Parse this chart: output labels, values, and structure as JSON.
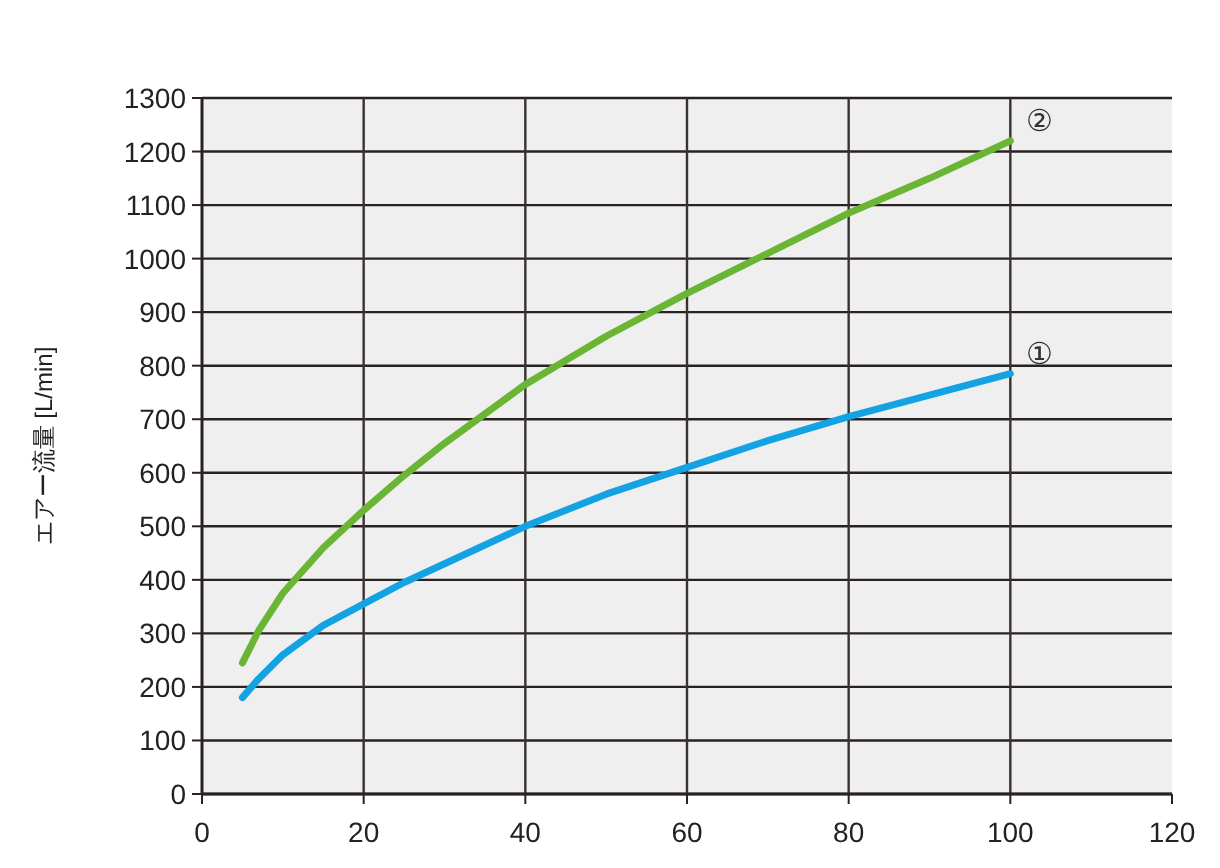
{
  "chart_data": {
    "type": "line",
    "ylabel": "エアー流量 [L/min]",
    "xlim": [
      0,
      120
    ],
    "xticks": [
      0,
      20,
      40,
      60,
      80,
      100,
      120
    ],
    "ylim": [
      0,
      1300
    ],
    "yticks": [
      0,
      100,
      200,
      300,
      400,
      500,
      600,
      700,
      800,
      900,
      1000,
      1100,
      1200,
      1300
    ],
    "grid": true,
    "marker": "none",
    "line_style": "solid",
    "series": [
      {
        "name": "①",
        "color": "#13a3e3",
        "x": [
          5,
          7,
          10,
          15,
          20,
          25,
          30,
          40,
          50,
          60,
          70,
          80,
          90,
          100
        ],
        "values": [
          180,
          215,
          260,
          315,
          355,
          395,
          430,
          500,
          560,
          610,
          660,
          705,
          745,
          785
        ]
      },
      {
        "name": "②",
        "color": "#6ab533",
        "x": [
          5,
          7,
          10,
          15,
          20,
          25,
          30,
          40,
          50,
          60,
          70,
          80,
          90,
          100
        ],
        "values": [
          245,
          305,
          375,
          460,
          530,
          595,
          655,
          765,
          855,
          935,
          1010,
          1085,
          1150,
          1220
        ]
      }
    ]
  }
}
